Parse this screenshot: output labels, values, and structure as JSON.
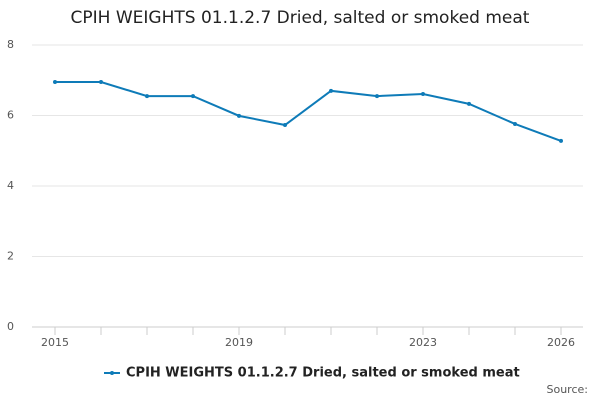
{
  "chart_data": {
    "type": "line",
    "title": "CPIH WEIGHTS 01.1.2.7 Dried, salted or smoked meat",
    "x": [
      2015,
      2016,
      2017,
      2018,
      2019,
      2020,
      2021,
      2022,
      2023,
      2024,
      2025,
      2026
    ],
    "series": [
      {
        "name": "CPIH WEIGHTS 01.1.2.7 Dried, salted or smoked meat",
        "color": "#0e7bb8",
        "values": [
          6.95,
          6.95,
          6.55,
          6.55,
          5.99,
          5.73,
          6.7,
          6.55,
          6.61,
          6.33,
          5.76,
          5.28
        ]
      }
    ],
    "xlim": [
      2015,
      2026
    ],
    "xticks": [
      2015,
      2019,
      2023,
      2026
    ],
    "ylim": [
      0,
      8
    ],
    "yticks": [
      0,
      2,
      4,
      6,
      8
    ],
    "grid": true,
    "source": "Source:"
  }
}
